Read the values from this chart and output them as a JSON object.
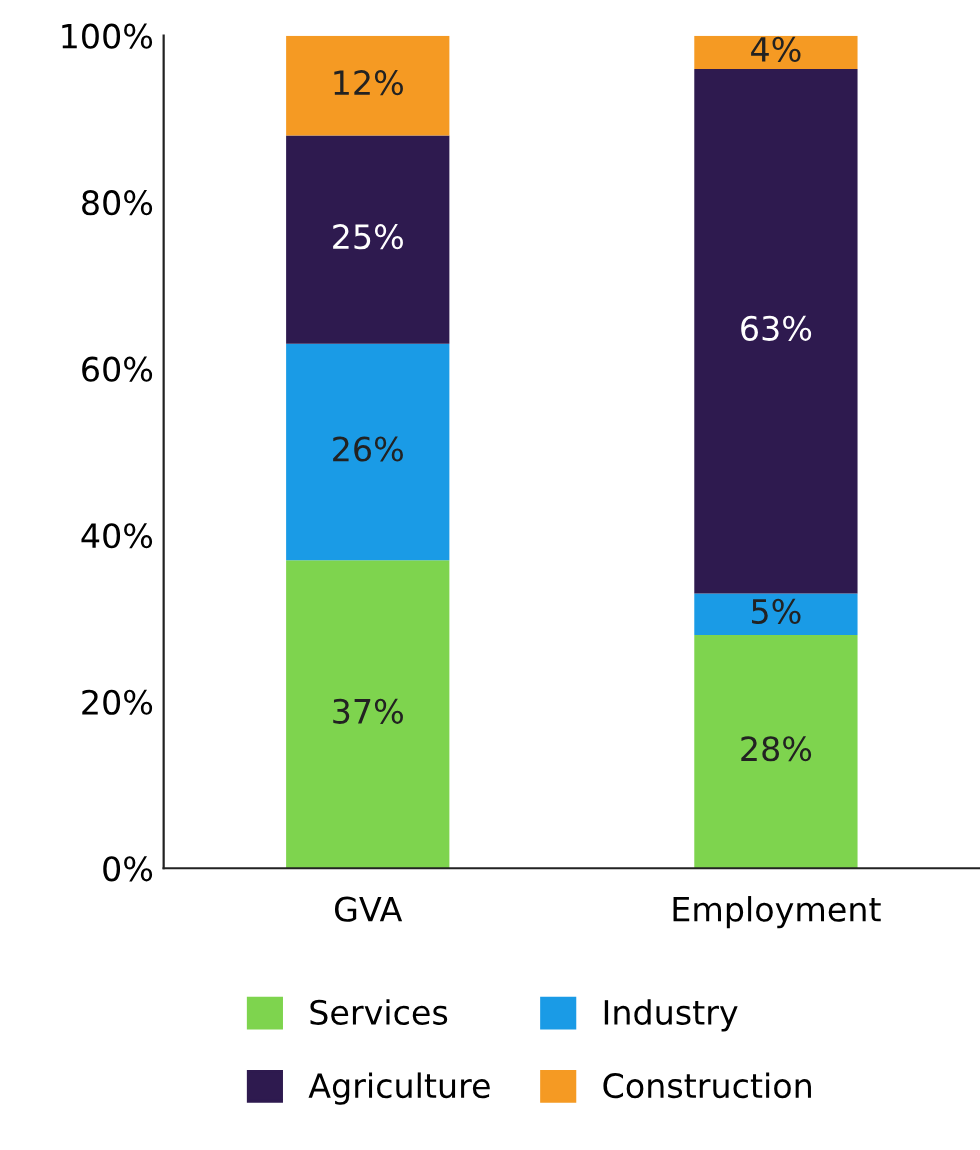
{
  "chart_data": {
    "type": "bar",
    "stacked": true,
    "categories": [
      "GVA",
      "Employment"
    ],
    "series": [
      {
        "name": "Services",
        "color": "#7ed44e",
        "values": [
          37,
          28
        ],
        "value_labels": [
          "37%",
          "28%"
        ]
      },
      {
        "name": "Industry",
        "color": "#1a9be6",
        "values": [
          26,
          5
        ],
        "value_labels": [
          "26%",
          "5%"
        ]
      },
      {
        "name": "Agriculture",
        "color": "#2e1a4f",
        "values": [
          25,
          63
        ],
        "value_labels": [
          "25%",
          "63%"
        ]
      },
      {
        "name": "Construction",
        "color": "#f59a23",
        "values": [
          12,
          4
        ],
        "value_labels": [
          "12%",
          "4%"
        ]
      }
    ],
    "ylim": [
      0,
      100
    ],
    "yticks": [
      {
        "value": 0,
        "label": "0%"
      },
      {
        "value": 20,
        "label": "20%"
      },
      {
        "value": 40,
        "label": "40%"
      },
      {
        "value": 60,
        "label": "60%"
      },
      {
        "value": 80,
        "label": "80%"
      },
      {
        "value": 100,
        "label": "100%"
      }
    ],
    "grid": false,
    "legend": "bottom"
  }
}
